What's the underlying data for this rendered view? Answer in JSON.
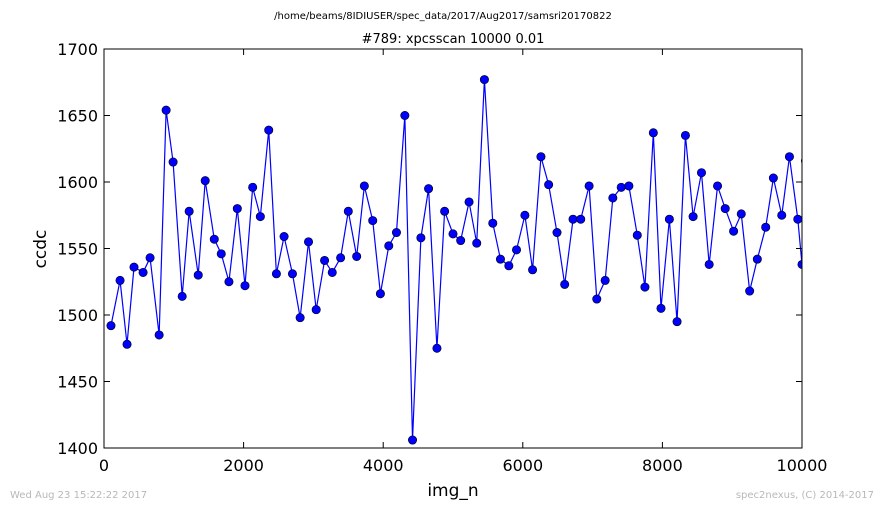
{
  "header": {
    "path": "/home/beams/8IDIUSER/spec_data/2017/Aug2017/samsri20170822"
  },
  "footer": {
    "timestamp": "Wed Aug 23 15:22:22 2017",
    "credit": "spec2nexus, (C) 2014-2017"
  },
  "colors": {
    "series": "#0000ff",
    "axis": "#000000",
    "footer": "#b8b8b8"
  },
  "chart_data": {
    "type": "line",
    "title": "#789: xpcsscan 10000 0.01",
    "xlabel": "img_n",
    "ylabel": "ccdc",
    "xlim": [
      0,
      10000
    ],
    "ylim": [
      1400,
      1700
    ],
    "xticks": [
      "0",
      "2000",
      "4000",
      "6000",
      "8000",
      "10000"
    ],
    "yticks": [
      "1400",
      "1450",
      "1500",
      "1550",
      "1600",
      "1650",
      "1700"
    ],
    "grid": false,
    "marker": "circle",
    "x": [
      100,
      230,
      330,
      430,
      560,
      660,
      790,
      890,
      990,
      1120,
      1220,
      1350,
      1450,
      1580,
      1680,
      1790,
      1910,
      2020,
      2130,
      2240,
      2360,
      2470,
      2580,
      2700,
      2810,
      2930,
      3040,
      3160,
      3270,
      3390,
      3500,
      3620,
      3730,
      3850,
      3960,
      4080,
      4190,
      4310,
      4420,
      4540,
      4650,
      4770,
      4880,
      5000,
      5110,
      5230,
      5340,
      5450,
      5570,
      5680,
      5800,
      5910,
      6030,
      6140,
      6260,
      6370,
      6490,
      6600,
      6720,
      6830,
      6950,
      7060,
      7180,
      7290,
      7410,
      7520,
      7640,
      7750,
      7870,
      7980,
      8100,
      8210,
      8330,
      8440,
      8560,
      8670,
      8790,
      8900,
      9020,
      9130,
      9250,
      9360,
      9480,
      9590,
      9710,
      9820,
      9940,
      10000,
      10050
    ],
    "series": [
      {
        "values": [
          1492,
          1526,
          1478,
          1536,
          1532,
          1543,
          1485,
          1654,
          1615,
          1514,
          1578,
          1530,
          1601,
          1557,
          1546,
          1525,
          1580,
          1522,
          1596,
          1574,
          1639,
          1531,
          1559,
          1531,
          1498,
          1555,
          1504,
          1541,
          1532,
          1543,
          1578,
          1544,
          1597,
          1571,
          1516,
          1552,
          1562,
          1650,
          1406,
          1558,
          1595,
          1475,
          1578,
          1561,
          1556,
          1585,
          1554,
          1677,
          1569,
          1542,
          1537,
          1549,
          1575,
          1534,
          1619,
          1598,
          1562,
          1523,
          1572,
          1572,
          1597,
          1512,
          1526,
          1588,
          1596,
          1597,
          1560,
          1521,
          1637,
          1505,
          1572,
          1495,
          1635,
          1574,
          1607,
          1538,
          1597,
          1580,
          1563,
          1576,
          1518,
          1542,
          1566,
          1603,
          1575,
          1619,
          1572,
          1538,
          1616
        ]
      }
    ]
  }
}
